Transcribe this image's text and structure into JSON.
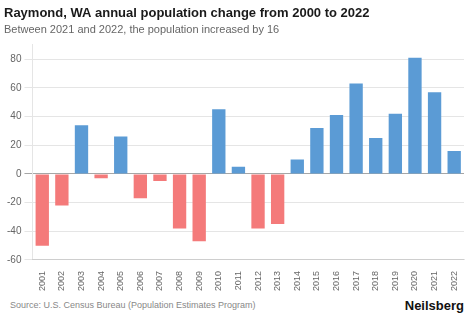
{
  "chart_data": {
    "type": "bar",
    "title": "Raymond, WA annual population change from 2000 to 2022",
    "subtitle": "Between 2021 and 2022, the population increased by 16",
    "annotations": [
      "Source: U.S. Census Bureau (Population Estimates Program)",
      "Neilsberg"
    ],
    "categories": [
      "2001",
      "2002",
      "2003",
      "2004",
      "2005",
      "2006",
      "2007",
      "2008",
      "2009",
      "2010",
      "2011",
      "2012",
      "2013",
      "2014",
      "2015",
      "2016",
      "2017",
      "2018",
      "2019",
      "2020",
      "2021",
      "2022"
    ],
    "values": [
      -50,
      -22,
      34,
      -3,
      26,
      -17,
      -5,
      -38,
      -47,
      45,
      5,
      -38,
      -35,
      10,
      32,
      41,
      63,
      25,
      42,
      81,
      57,
      16
    ],
    "colors": [
      "#f47a7a",
      "#f47a7a",
      "#5b9bd5",
      "#f47a7a",
      "#5b9bd5",
      "#f47a7a",
      "#f47a7a",
      "#f47a7a",
      "#f47a7a",
      "#5b9bd5",
      "#5b9bd5",
      "#f47a7a",
      "#f47a7a",
      "#5b9bd5",
      "#5b9bd5",
      "#5b9bd5",
      "#5b9bd5",
      "#5b9bd5",
      "#5b9bd5",
      "#5b9bd5",
      "#5b9bd5",
      "#5b9bd5"
    ],
    "ylim": [
      -60,
      90
    ],
    "yticks": [
      -60,
      -40,
      -20,
      0,
      20,
      40,
      60,
      80
    ],
    "grid": true
  }
}
